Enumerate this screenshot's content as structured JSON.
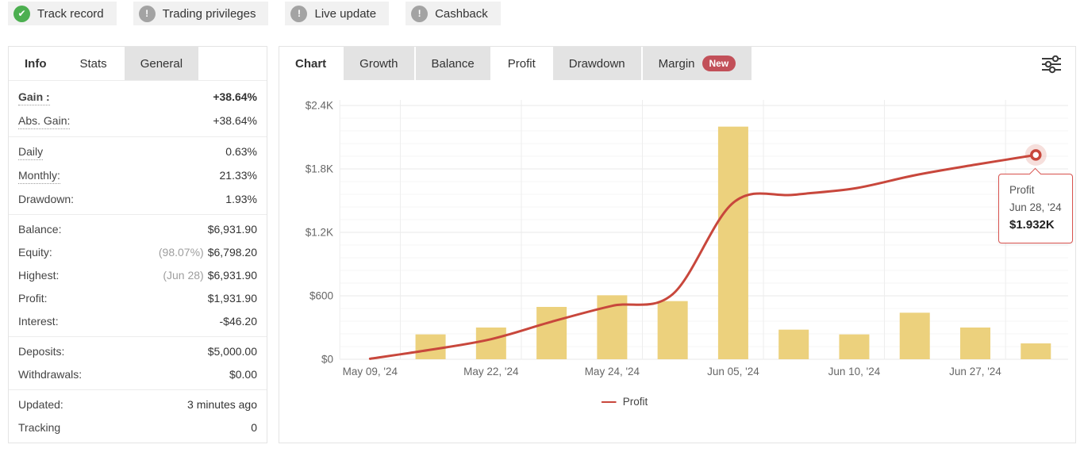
{
  "theme": {
    "positive_green": "#4ea04e",
    "line_red": "#c8473c",
    "bar_yellow": "#ecd17d",
    "tab_inactive_bg": "#e3e3e3",
    "badge_bg": "#f1f1f1",
    "tooltip_border": "#d9534f",
    "new_badge_red": "#c25059"
  },
  "badges": [
    {
      "label": "Track record",
      "icon": "check-circle",
      "color": "#4caf50"
    },
    {
      "label": "Trading privileges",
      "icon": "exclamation-circle",
      "color": "#a3a3a3"
    },
    {
      "label": "Live update",
      "icon": "exclamation-circle",
      "color": "#a3a3a3"
    },
    {
      "label": "Cashback",
      "icon": "exclamation-circle",
      "color": "#a3a3a3"
    }
  ],
  "info_panel": {
    "tabs": [
      {
        "label": "Info",
        "role": "title"
      },
      {
        "label": "Stats",
        "state": "active"
      },
      {
        "label": "General",
        "state": "inactive"
      }
    ],
    "sections": [
      {
        "rows": [
          {
            "label": "Gain :",
            "value": "+38.64%",
            "label_bold": true,
            "label_underline": true,
            "value_bold": true,
            "value_color": "green"
          },
          {
            "label": "Abs. Gain:",
            "value": "+38.64%",
            "label_underline": true,
            "value_color": "green"
          }
        ]
      },
      {
        "rows": [
          {
            "label": "Daily",
            "value": "0.63%",
            "label_underline": true
          },
          {
            "label": "Monthly:",
            "value": "21.33%",
            "label_underline": true
          },
          {
            "label": "Drawdown:",
            "value": "1.93%"
          }
        ]
      },
      {
        "rows": [
          {
            "label": "Balance:",
            "value": "$6,931.90"
          },
          {
            "label": "Equity:",
            "value": "$6,798.20",
            "prefix": "(98.07%)"
          },
          {
            "label": "Highest:",
            "value": "$6,931.90",
            "prefix": "(Jun 28)"
          },
          {
            "label": "Profit:",
            "value": "$1,931.90",
            "value_color": "green"
          },
          {
            "label": "Interest:",
            "value": "-$46.20"
          }
        ]
      },
      {
        "rows": [
          {
            "label": "Deposits:",
            "value": "$5,000.00"
          },
          {
            "label": "Withdrawals:",
            "value": "$0.00"
          }
        ]
      },
      {
        "rows": [
          {
            "label": "Updated:",
            "value": "3 minutes ago"
          },
          {
            "label": "Tracking",
            "value": "0"
          }
        ]
      }
    ]
  },
  "chart_panel": {
    "tabs": [
      {
        "label": "Chart",
        "role": "title"
      },
      {
        "label": "Growth",
        "state": "inactive"
      },
      {
        "label": "Balance",
        "state": "inactive"
      },
      {
        "label": "Profit",
        "state": "active"
      },
      {
        "label": "Drawdown",
        "state": "inactive"
      },
      {
        "label": "Margin",
        "state": "inactive",
        "badge": "New",
        "badge_color": "#c25059"
      }
    ],
    "filter_icon": "sliders-icon"
  },
  "chart_data": {
    "type": "bar+line",
    "n_points": 12,
    "x_tick_labels": [
      {
        "index": 0,
        "label": "May 09, '24"
      },
      {
        "index": 2,
        "label": "May 22, '24"
      },
      {
        "index": 4,
        "label": "May 24, '24"
      },
      {
        "index": 6,
        "label": "Jun 05, '24"
      },
      {
        "index": 8,
        "label": "Jun 10, '24"
      },
      {
        "index": 10,
        "label": "Jun 27, '24"
      }
    ],
    "y_axis": {
      "min": 0,
      "max": 2400,
      "ticks": [
        {
          "value": 0,
          "label": "$0"
        },
        {
          "value": 600,
          "label": "$600"
        },
        {
          "value": 1200,
          "label": "$1.2K"
        },
        {
          "value": 1800,
          "label": "$1.8K"
        },
        {
          "value": 2400,
          "label": "$2.4K"
        }
      ]
    },
    "series": [
      {
        "name": "",
        "type": "bar",
        "color": "#ecd17d",
        "values": [
          0,
          235,
          300,
          495,
          605,
          550,
          2200,
          280,
          235,
          440,
          300,
          150
        ]
      },
      {
        "name": "Profit",
        "type": "line",
        "color": "#c8473c",
        "values": [
          5,
          90,
          190,
          355,
          505,
          615,
          1480,
          1555,
          1615,
          1740,
          1840,
          1932
        ]
      }
    ],
    "grid": {
      "horizontal_major": true,
      "horizontal_minor": true,
      "vertical": true
    },
    "legend": {
      "position": "bottom-center",
      "items": [
        {
          "label": "Profit",
          "color": "#c8473c"
        }
      ]
    },
    "tooltip": {
      "series": "Profit",
      "date": "Jun 28, '24",
      "value": "$1.932K",
      "point_index": 11
    },
    "highlight_point": {
      "index": 11,
      "value": 1932
    }
  }
}
